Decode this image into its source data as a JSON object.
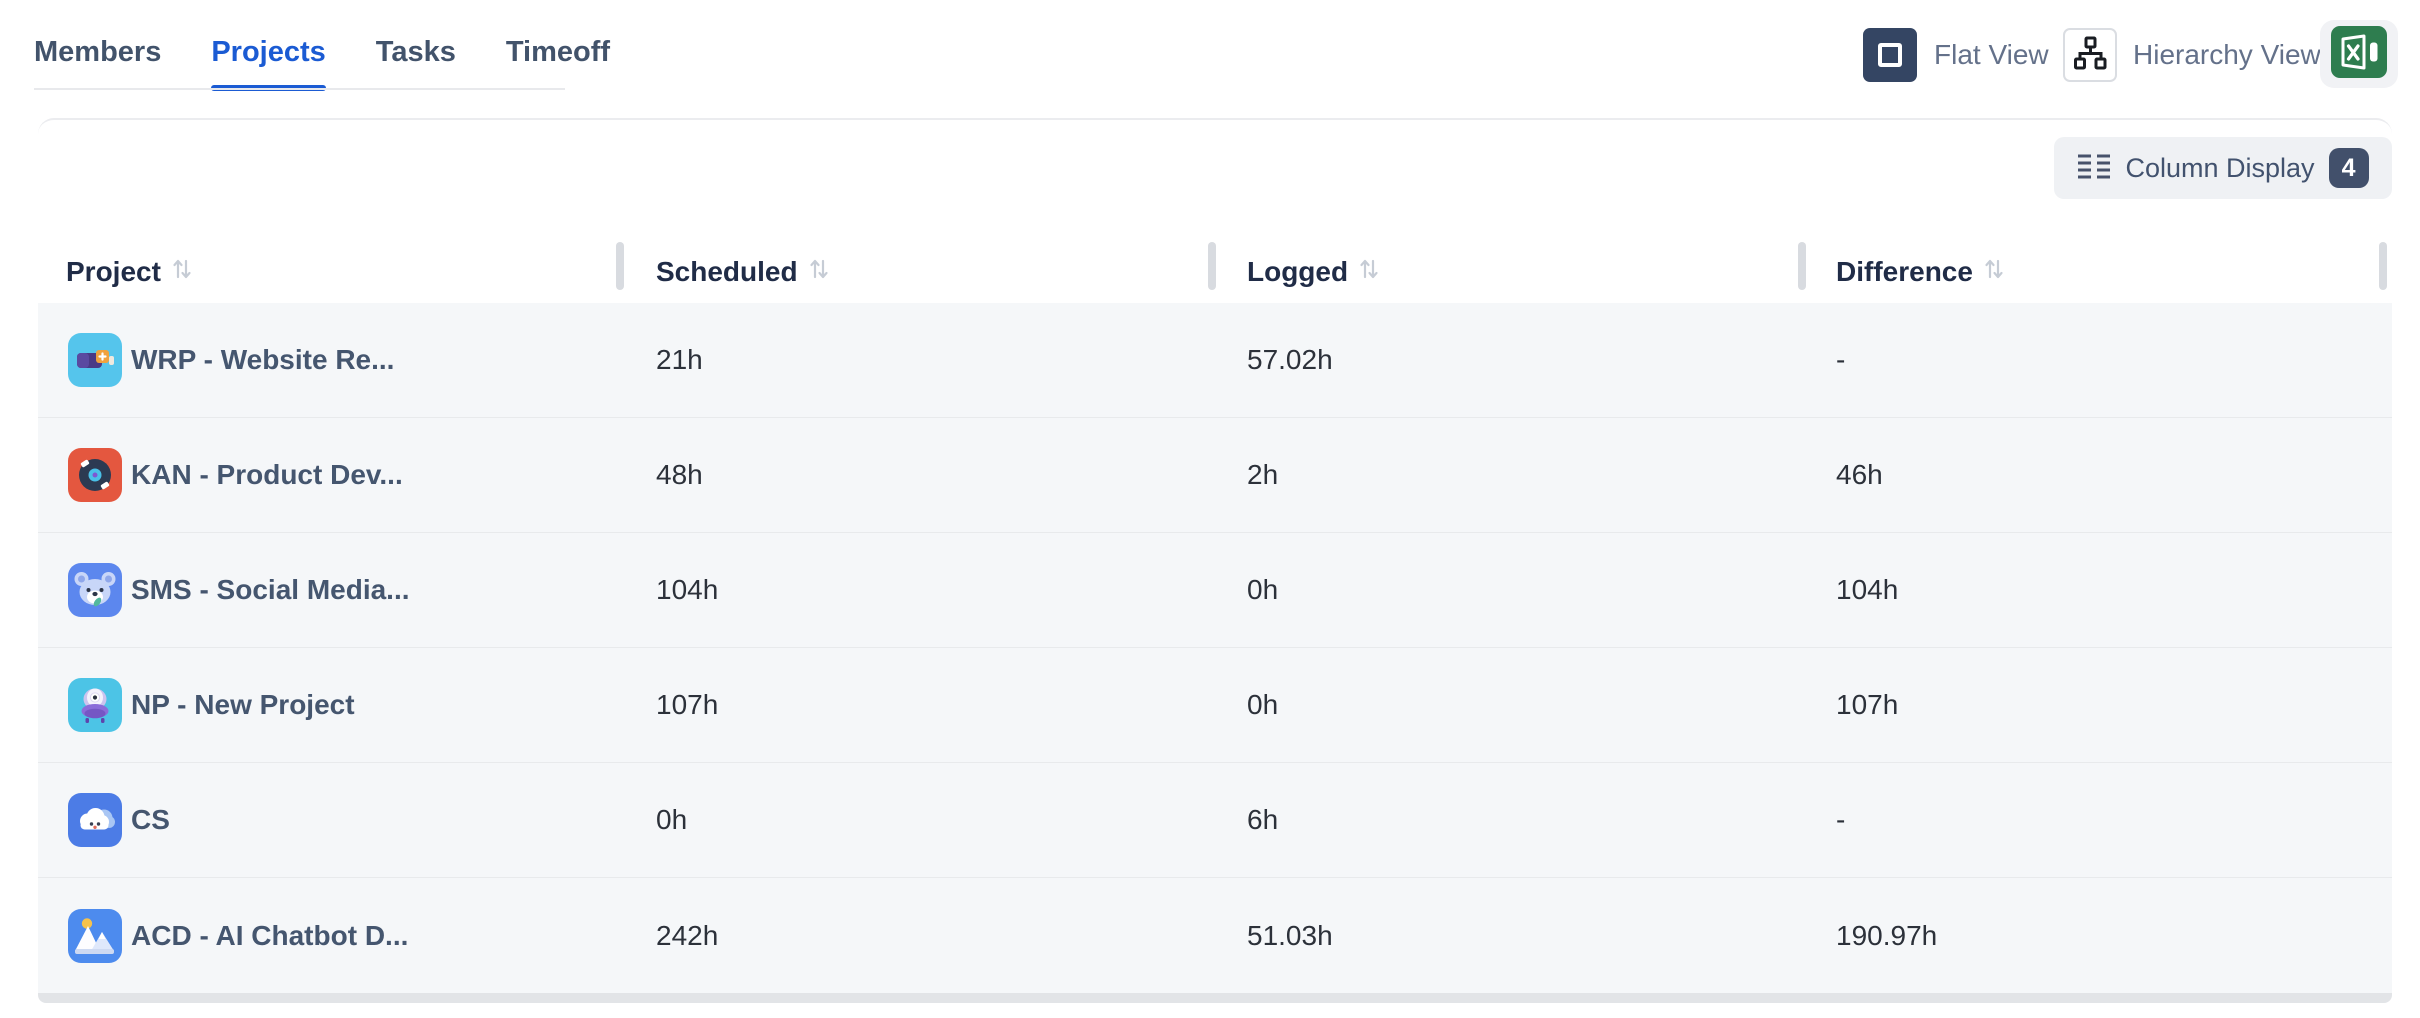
{
  "tabs": [
    {
      "label": "Members",
      "active": false
    },
    {
      "label": "Projects",
      "active": true
    },
    {
      "label": "Tasks",
      "active": false
    },
    {
      "label": "Timeoff",
      "active": false
    }
  ],
  "view_controls": {
    "flat_view_label": "Flat View",
    "hierarchy_view_label": "Hierarchy View",
    "export_icon": "excel-export-icon"
  },
  "toolbar": {
    "column_display_label": "Column Display",
    "column_display_count": "4",
    "icon": "column-display-icon"
  },
  "table": {
    "columns": [
      "Project",
      "Scheduled",
      "Logged",
      "Difference"
    ],
    "sort_icon": "sort-arrows-icon",
    "rows": [
      {
        "icon": "battery-project-icon",
        "icon_bg": "#55c5ec",
        "name": "WRP - Website Re...",
        "scheduled": "21h",
        "logged": "57.02h",
        "difference": "-"
      },
      {
        "icon": "vinyl-record-project-icon",
        "icon_bg": "#e4573f",
        "name": "KAN - Product Dev...",
        "scheduled": "48h",
        "logged": "2h",
        "difference": "46h"
      },
      {
        "icon": "koala-project-icon",
        "icon_bg": "#5c87ee",
        "name": "SMS - Social Media...",
        "scheduled": "104h",
        "logged": "0h",
        "difference": "104h"
      },
      {
        "icon": "ufo-project-icon",
        "icon_bg": "#4cc4e6",
        "name": "NP - New Project",
        "scheduled": "107h",
        "logged": "0h",
        "difference": "107h"
      },
      {
        "icon": "cloud-project-icon",
        "icon_bg": "#4c7ce6",
        "name": "CS",
        "scheduled": "0h",
        "logged": "6h",
        "difference": "-"
      },
      {
        "icon": "mountain-project-icon",
        "icon_bg": "#4d8bee",
        "name": "ACD - AI Chatbot D...",
        "scheduled": "242h",
        "logged": "51.03h",
        "difference": "190.97h"
      }
    ]
  },
  "colors": {
    "accent_blue": "#1b5bd3",
    "flat_view_button": "#344563",
    "excel_green": "#2e7d4f",
    "badge": "#42506b",
    "row_background": "#f5f7f9"
  }
}
